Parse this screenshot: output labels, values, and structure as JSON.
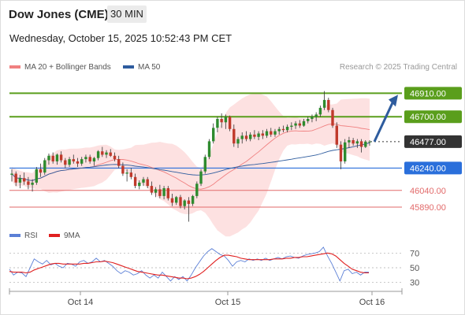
{
  "header": {
    "title": "Dow Jones (CME)",
    "timeframe": "30 MIN",
    "datetime": "Wednesday, October 15, 2025 10:52:43 PM CET"
  },
  "legend": {
    "items": [
      {
        "label": "MA 20 + Bollinger Bands",
        "color": "#f08080"
      },
      {
        "label": "MA 50",
        "color": "#2e5c9e"
      }
    ],
    "credit": "Research © 2025 Trading Central"
  },
  "rsi_legend": {
    "items": [
      {
        "label": "RSI",
        "color": "#5b7fd6"
      },
      {
        "label": "9MA",
        "color": "#e02020"
      }
    ]
  },
  "colors": {
    "resistance": "#5a9e1c",
    "pivot": "#2a6fdb",
    "support": "#e26a6a",
    "candle_up": "#2e8b2e",
    "candle_down": "#c0392b",
    "bollinger_fill": "#fcd9d9",
    "current_price_bg": "#333333",
    "arrow": "#2e5c9e"
  },
  "chart_data": [
    {
      "type": "candlestick",
      "title": "",
      "x_ticks": [
        "Oct 14",
        "Oct 15",
        "Oct 16"
      ],
      "ylim": [
        45700,
        47040
      ],
      "levels": [
        {
          "value": 46910.0,
          "label": "46910.00",
          "kind": "resistance"
        },
        {
          "value": 46700.0,
          "label": "46700.00",
          "kind": "resistance"
        },
        {
          "value": 46477.0,
          "label": "46477.00",
          "kind": "current"
        },
        {
          "value": 46240.0,
          "label": "46240.00",
          "kind": "pivot"
        },
        {
          "value": 46040.0,
          "label": "46040.00",
          "kind": "support"
        },
        {
          "value": 45890.0,
          "label": "45890.00",
          "kind": "support"
        }
      ],
      "ohlc": [
        [
          46180,
          46230,
          46120,
          46190
        ],
        [
          46190,
          46210,
          46080,
          46110
        ],
        [
          46110,
          46180,
          46060,
          46150
        ],
        [
          46150,
          46200,
          46090,
          46120
        ],
        [
          46120,
          46160,
          46050,
          46090
        ],
        [
          46090,
          46140,
          46030,
          46110
        ],
        [
          46110,
          46250,
          46090,
          46230
        ],
        [
          46230,
          46280,
          46160,
          46200
        ],
        [
          46200,
          46330,
          46180,
          46310
        ],
        [
          46310,
          46370,
          46270,
          46350
        ],
        [
          46350,
          46380,
          46280,
          46300
        ],
        [
          46300,
          46370,
          46270,
          46360
        ],
        [
          46360,
          46390,
          46290,
          46310
        ],
        [
          46310,
          46330,
          46240,
          46270
        ],
        [
          46270,
          46340,
          46250,
          46320
        ],
        [
          46320,
          46360,
          46280,
          46300
        ],
        [
          46300,
          46330,
          46250,
          46280
        ],
        [
          46280,
          46340,
          46260,
          46320
        ],
        [
          46320,
          46360,
          46290,
          46340
        ],
        [
          46340,
          46360,
          46280,
          46300
        ],
        [
          46300,
          46340,
          46260,
          46330
        ],
        [
          46330,
          46400,
          46310,
          46390
        ],
        [
          46390,
          46430,
          46340,
          46360
        ],
        [
          46360,
          46400,
          46330,
          46380
        ],
        [
          46380,
          46410,
          46340,
          46350
        ],
        [
          46350,
          46380,
          46300,
          46320
        ],
        [
          46320,
          46350,
          46240,
          46260
        ],
        [
          46260,
          46290,
          46170,
          46190
        ],
        [
          46190,
          46230,
          46120,
          46200
        ],
        [
          46200,
          46240,
          46140,
          46160
        ],
        [
          46160,
          46190,
          46060,
          46080
        ],
        [
          46080,
          46130,
          46050,
          46110
        ],
        [
          46110,
          46160,
          46080,
          46140
        ],
        [
          46140,
          46160,
          46060,
          46080
        ],
        [
          46080,
          46120,
          46000,
          46020
        ],
        [
          46020,
          46070,
          45980,
          46050
        ],
        [
          46050,
          46090,
          45970,
          45990
        ],
        [
          45990,
          46080,
          45960,
          46060
        ],
        [
          46060,
          46080,
          45950,
          45970
        ],
        [
          45970,
          46010,
          45900,
          45930
        ],
        [
          45930,
          45990,
          45910,
          45980
        ],
        [
          45980,
          46000,
          45880,
          45900
        ],
        [
          45900,
          45960,
          45870,
          45950
        ],
        [
          45950,
          45980,
          45760,
          45920
        ],
        [
          45920,
          46000,
          45900,
          45990
        ],
        [
          45990,
          46120,
          45970,
          46100
        ],
        [
          46100,
          46230,
          46080,
          46210
        ],
        [
          46210,
          46360,
          46190,
          46340
        ],
        [
          46340,
          46500,
          46320,
          46480
        ],
        [
          46480,
          46640,
          46460,
          46600
        ],
        [
          46600,
          46700,
          46560,
          46680
        ],
        [
          46680,
          46730,
          46600,
          46650
        ],
        [
          46650,
          46720,
          46590,
          46700
        ],
        [
          46700,
          46710,
          46570,
          46590
        ],
        [
          46590,
          46630,
          46430,
          46460
        ],
        [
          46460,
          46520,
          46420,
          46500
        ],
        [
          46500,
          46560,
          46460,
          46530
        ],
        [
          46530,
          46570,
          46480,
          46500
        ],
        [
          46500,
          46560,
          46480,
          46540
        ],
        [
          46540,
          46580,
          46500,
          46520
        ],
        [
          46520,
          46570,
          46490,
          46550
        ],
        [
          46550,
          46580,
          46500,
          46530
        ],
        [
          46530,
          46590,
          46510,
          46570
        ],
        [
          46570,
          46600,
          46520,
          46540
        ],
        [
          46540,
          46590,
          46520,
          46570
        ],
        [
          46570,
          46610,
          46540,
          46590
        ],
        [
          46590,
          46620,
          46560,
          46580
        ],
        [
          46580,
          46630,
          46560,
          46610
        ],
        [
          46610,
          46650,
          46580,
          46620
        ],
        [
          46620,
          46660,
          46590,
          46640
        ],
        [
          46640,
          46670,
          46600,
          46620
        ],
        [
          46620,
          46680,
          46610,
          46660
        ],
        [
          46660,
          46700,
          46640,
          46680
        ],
        [
          46680,
          46720,
          46650,
          46700
        ],
        [
          46700,
          46740,
          46660,
          46720
        ],
        [
          46720,
          46800,
          46700,
          46780
        ],
        [
          46780,
          46930,
          46760,
          46850
        ],
        [
          46850,
          46870,
          46740,
          46760
        ],
        [
          46760,
          46780,
          46600,
          46620
        ],
        [
          46620,
          46650,
          46420,
          46450
        ],
        [
          46450,
          46480,
          46230,
          46300
        ],
        [
          46300,
          46500,
          46280,
          46470
        ],
        [
          46470,
          46520,
          46420,
          46490
        ],
        [
          46490,
          46510,
          46440,
          46460
        ],
        [
          46460,
          46500,
          46420,
          46480
        ],
        [
          46480,
          46500,
          46380,
          46430
        ],
        [
          46430,
          46490,
          46420,
          46477
        ],
        [
          46477,
          46490,
          46440,
          46477
        ]
      ]
    },
    {
      "type": "line",
      "title": "",
      "ylim": [
        20,
        80
      ],
      "y_ticks": [
        70,
        50,
        30
      ],
      "series": [
        {
          "name": "RSI",
          "values": [
            48,
            40,
            44,
            43,
            38,
            50,
            62,
            58,
            55,
            60,
            54,
            56,
            52,
            50,
            56,
            55,
            52,
            58,
            60,
            56,
            58,
            63,
            58,
            60,
            56,
            52,
            46,
            42,
            46,
            44,
            40,
            42,
            46,
            40,
            36,
            40,
            36,
            44,
            38,
            32,
            38,
            34,
            38,
            32,
            40,
            50,
            58,
            66,
            72,
            76,
            72,
            68,
            66,
            60,
            52,
            58,
            60,
            58,
            62,
            60,
            62,
            60,
            63,
            60,
            62,
            64,
            62,
            65,
            66,
            64,
            63,
            66,
            68,
            69,
            70,
            72,
            78,
            66,
            56,
            44,
            32,
            46,
            48,
            42,
            44,
            40,
            44,
            44
          ]
        },
        {
          "name": "9MA",
          "values": [
            45,
            44,
            44,
            44,
            43,
            44,
            47,
            49,
            51,
            53,
            55,
            56,
            56,
            55,
            55,
            55,
            55,
            55,
            56,
            56,
            57,
            58,
            58,
            59,
            58,
            57,
            55,
            53,
            51,
            49,
            47,
            45,
            44,
            43,
            42,
            41,
            40,
            40,
            39,
            38,
            37,
            36,
            36,
            35,
            36,
            38,
            41,
            45,
            50,
            55,
            60,
            64,
            67,
            67,
            66,
            65,
            63,
            62,
            61,
            61,
            61,
            61,
            61,
            61,
            62,
            62,
            62,
            63,
            63,
            64,
            64,
            65,
            65,
            66,
            67,
            68,
            69,
            70,
            69,
            66,
            61,
            56,
            52,
            48,
            46,
            44,
            43,
            43
          ]
        }
      ]
    }
  ]
}
